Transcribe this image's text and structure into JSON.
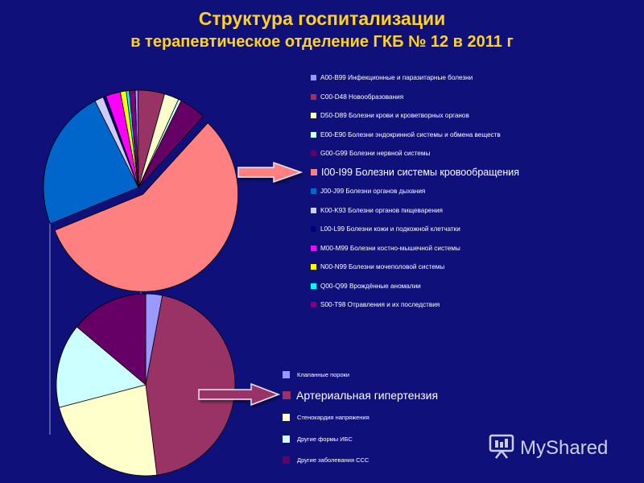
{
  "title": {
    "line1": "Структура госпитализации",
    "line2": "в терапевтическое отделение ГКБ № 12 в 2011 г"
  },
  "chart_data": [
    {
      "type": "pie",
      "title": "",
      "categories": [
        "A00-B99 Инфекционные и паразитарные болезни",
        "C00-D48 Новообразования",
        "D50-D89 Болезни крови и кроветворных органов",
        "E00-E90 Болезни эндокринной системы и обмена веществ",
        "G00-G99 Болезни нервной системы",
        "I00-I99 Болезни системы кровообращения",
        "J00-J99 Болезни органов дыхания",
        "K00-K93 Болезни органов пищеварения",
        "L00-L99 Болезни кожи и подкожной клетчатки",
        "M00-M99 Болезни костно-мышечной системы",
        "N00-N99 Болезни мочеполовой системы",
        "Q00-Q99 Врождённые аномалии",
        "S00-T98 Отравления и их последствия"
      ],
      "values": [
        0.5,
        4.5,
        2.5,
        0.5,
        4.5,
        57,
        23.5,
        1.5,
        0.5,
        2.5,
        1,
        0.5,
        1
      ],
      "colors": [
        "#9999ff",
        "#993366",
        "#ffffcc",
        "#ccffff",
        "#660066",
        "#ff8080",
        "#0066cc",
        "#ccccff",
        "#000080",
        "#ff00ff",
        "#ffff00",
        "#00ffff",
        "#800080"
      ],
      "highlighted": "I00-I99 Болезни системы кровообращения"
    },
    {
      "type": "pie",
      "title": "",
      "categories": [
        "Клапанные пороки",
        "Артериальная гипертензия",
        "Стенокардия напряжения",
        "Другие формы ИБС",
        "Другие заболевания ССС"
      ],
      "values": [
        3,
        45,
        23,
        15,
        14
      ],
      "colors": [
        "#9999ff",
        "#993366",
        "#ffffcc",
        "#ccffff",
        "#660066"
      ],
      "highlighted": "Артериальная гипертензия"
    }
  ],
  "watermark": {
    "text": "MyShared",
    "icon": "projector-screen-icon"
  }
}
